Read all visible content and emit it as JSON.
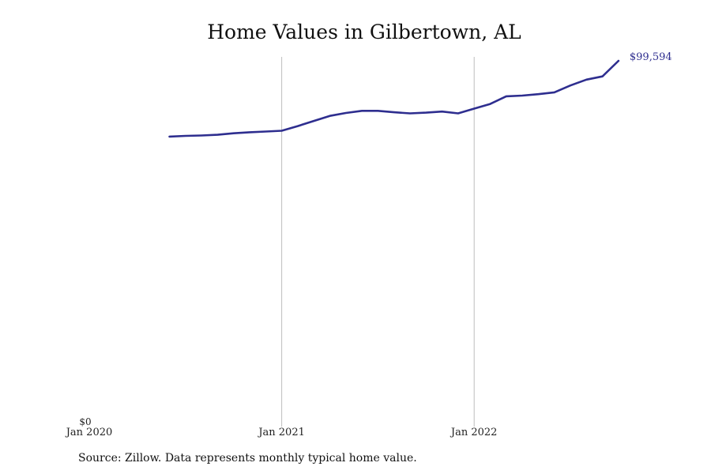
{
  "title": "Home Values in Gilbertown, AL",
  "source": "Source: Zillow. Data represents monthly typical home value.",
  "colors": {
    "line": "#2e2e8f",
    "grid": "#bdbdbd"
  },
  "chart_data": {
    "type": "line",
    "title": "Home Values in Gilbertown, AL",
    "xlabel": "",
    "ylabel": "",
    "grid": "vertical lines at year ticks",
    "x_ticks": [
      "Jan 2020",
      "Jan 2021",
      "Jan 2022"
    ],
    "y_ticks": [
      "$0"
    ],
    "ylim": [
      0,
      101000
    ],
    "end_label": "$99,594",
    "series": [
      {
        "x": [
          "2020-06",
          "2020-07",
          "2020-08",
          "2020-09",
          "2020-10",
          "2020-11",
          "2020-12",
          "2021-01",
          "2021-02",
          "2021-03",
          "2021-04",
          "2021-05",
          "2021-06",
          "2021-07",
          "2021-08",
          "2021-09",
          "2021-10",
          "2021-11",
          "2021-12",
          "2022-01",
          "2022-02",
          "2022-03",
          "2022-04",
          "2022-05",
          "2022-06",
          "2022-07",
          "2022-08",
          "2022-09",
          "2022-10"
        ],
        "values": [
          78700,
          78900,
          79000,
          79200,
          79600,
          79900,
          80100,
          80300,
          81600,
          83000,
          84400,
          85200,
          85800,
          85800,
          85400,
          85100,
          85300,
          85600,
          85100,
          86400,
          87700,
          89800,
          90000,
          90400,
          90900,
          92800,
          94400,
          95300,
          99594
        ]
      }
    ]
  }
}
